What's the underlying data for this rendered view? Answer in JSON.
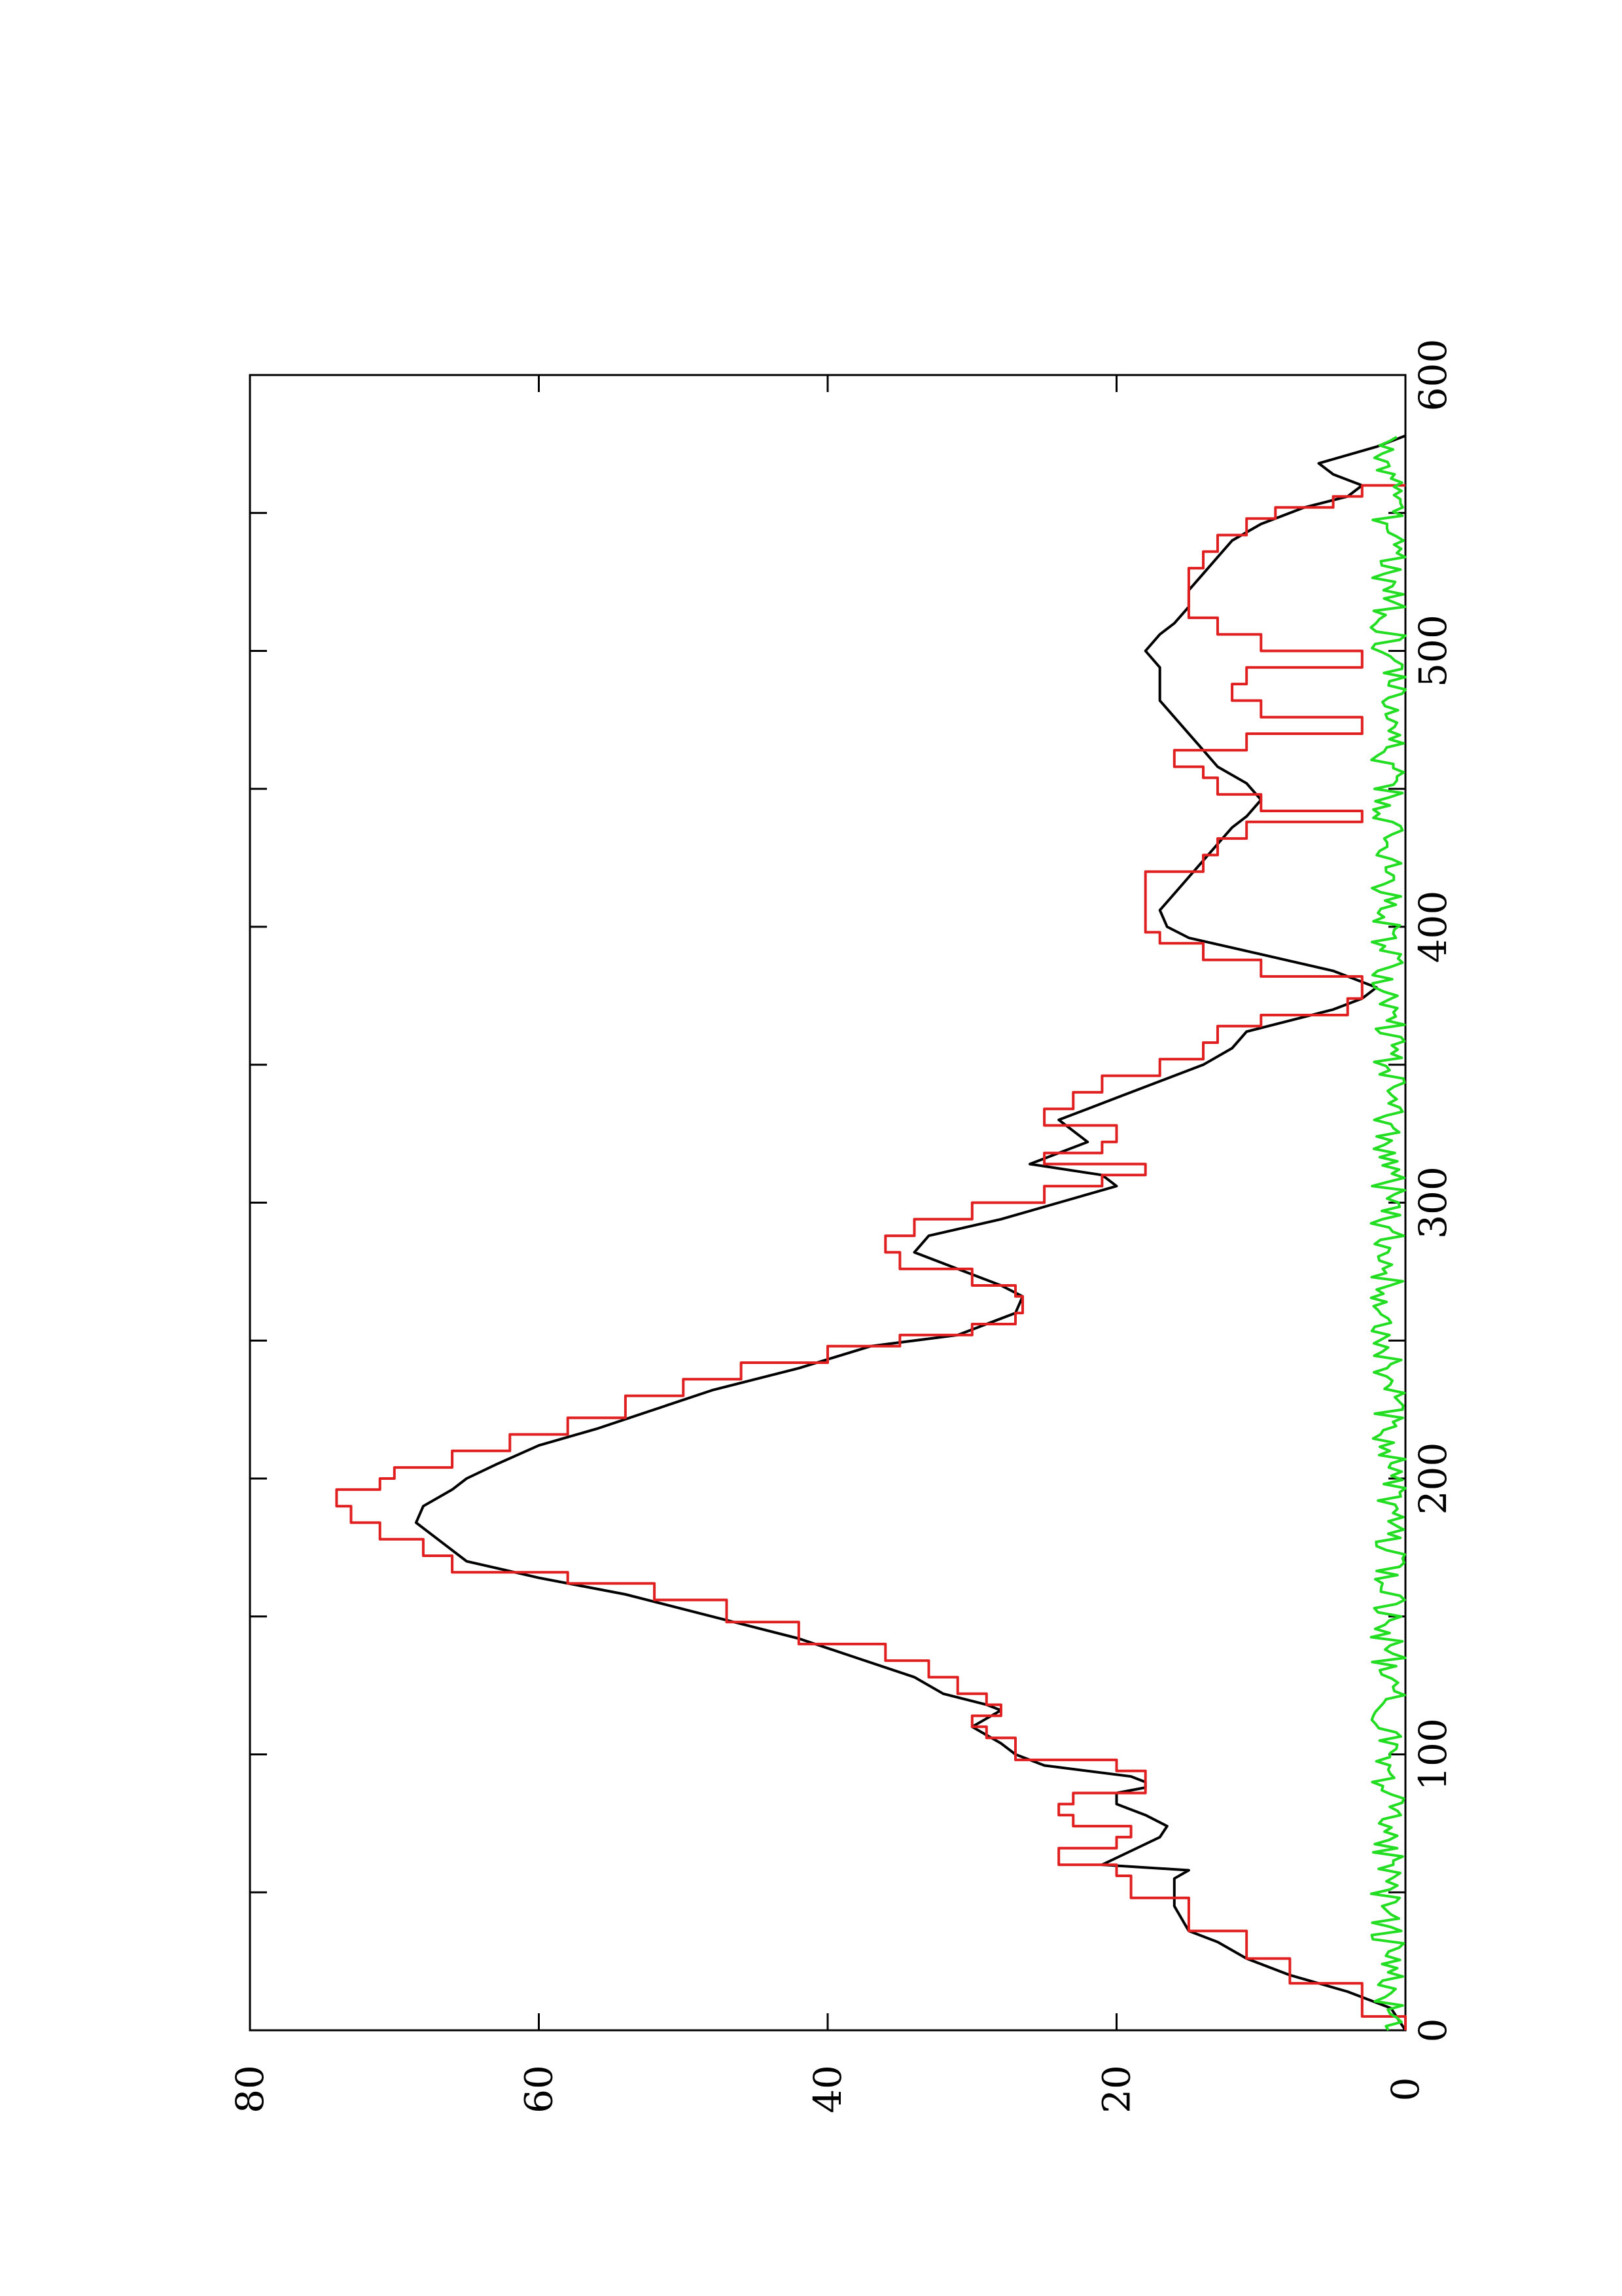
{
  "chart_data": {
    "type": "line",
    "title": "",
    "xlabel": "",
    "ylabel": "",
    "orientation": "rotated-90-ccw",
    "xlim": [
      0,
      600
    ],
    "ylim": [
      0,
      80
    ],
    "x_ticks": [
      "0",
      "100",
      "200",
      "300",
      "400",
      "500",
      "600"
    ],
    "y_ticks": [
      "0",
      "20",
      "40",
      "60",
      "80"
    ],
    "grid": false,
    "legend": "none",
    "series": [
      {
        "color": "#000000",
        "style": "smooth",
        "points": [
          [
            0,
            0
          ],
          [
            8,
            1
          ],
          [
            14,
            4
          ],
          [
            20,
            8
          ],
          [
            26,
            11
          ],
          [
            32,
            13
          ],
          [
            36,
            15
          ],
          [
            45,
            16
          ],
          [
            50,
            16
          ],
          [
            55,
            16
          ],
          [
            58,
            15
          ],
          [
            60,
            21
          ],
          [
            65,
            19
          ],
          [
            70,
            17
          ],
          [
            74,
            16.5
          ],
          [
            78,
            18
          ],
          [
            82,
            20
          ],
          [
            86,
            20
          ],
          [
            88,
            18
          ],
          [
            90,
            18
          ],
          [
            92,
            19
          ],
          [
            96,
            25
          ],
          [
            100,
            27
          ],
          [
            104,
            28
          ],
          [
            107,
            29
          ],
          [
            110,
            30
          ],
          [
            113,
            29
          ],
          [
            116,
            28
          ],
          [
            118,
            29
          ],
          [
            122,
            32
          ],
          [
            128,
            34
          ],
          [
            135,
            38
          ],
          [
            142,
            42
          ],
          [
            150,
            48
          ],
          [
            158,
            54
          ],
          [
            164,
            60
          ],
          [
            170,
            65
          ],
          [
            178,
            67
          ],
          [
            184,
            68.5
          ],
          [
            190,
            68
          ],
          [
            196,
            66
          ],
          [
            200,
            65
          ],
          [
            205,
            63
          ],
          [
            212,
            60
          ],
          [
            218,
            56
          ],
          [
            225,
            52
          ],
          [
            232,
            48
          ],
          [
            240,
            42
          ],
          [
            248,
            37
          ],
          [
            252,
            31
          ],
          [
            256,
            29
          ],
          [
            260,
            27
          ],
          [
            266,
            26.5
          ],
          [
            270,
            28
          ],
          [
            276,
            31
          ],
          [
            282,
            34
          ],
          [
            288,
            33
          ],
          [
            294,
            28
          ],
          [
            300,
            24
          ],
          [
            306,
            20
          ],
          [
            310,
            21
          ],
          [
            314,
            26
          ],
          [
            318,
            24
          ],
          [
            322,
            22
          ],
          [
            326,
            23
          ],
          [
            330,
            24
          ],
          [
            334,
            22
          ],
          [
            338,
            20
          ],
          [
            344,
            17
          ],
          [
            350,
            14
          ],
          [
            356,
            12
          ],
          [
            362,
            11
          ],
          [
            366,
            8
          ],
          [
            370,
            5
          ],
          [
            374,
            3
          ],
          [
            378,
            2
          ],
          [
            384,
            5
          ],
          [
            390,
            10
          ],
          [
            396,
            15
          ],
          [
            400,
            16.5
          ],
          [
            406,
            17
          ],
          [
            412,
            16
          ],
          [
            418,
            15
          ],
          [
            424,
            14
          ],
          [
            430,
            13
          ],
          [
            436,
            12
          ],
          [
            440,
            11
          ],
          [
            446,
            10
          ],
          [
            452,
            11
          ],
          [
            458,
            13
          ],
          [
            464,
            14
          ],
          [
            470,
            15
          ],
          [
            476,
            16
          ],
          [
            482,
            17
          ],
          [
            488,
            17
          ],
          [
            494,
            17
          ],
          [
            500,
            18
          ],
          [
            506,
            17
          ],
          [
            510,
            16
          ],
          [
            516,
            15
          ],
          [
            522,
            15
          ],
          [
            528,
            14
          ],
          [
            534,
            13
          ],
          [
            540,
            12
          ],
          [
            546,
            10
          ],
          [
            552,
            7
          ],
          [
            556,
            4
          ],
          [
            560,
            3
          ],
          [
            564,
            5
          ],
          [
            568,
            6
          ],
          [
            574,
            2
          ],
          [
            578,
            0
          ]
        ]
      },
      {
        "color": "#e02020",
        "style": "step",
        "points": [
          [
            0,
            0
          ],
          [
            5,
            3
          ],
          [
            12,
            3
          ],
          [
            17,
            8
          ],
          [
            22,
            8
          ],
          [
            26,
            11
          ],
          [
            32,
            11
          ],
          [
            36,
            15
          ],
          [
            44,
            15
          ],
          [
            48,
            19
          ],
          [
            52,
            19
          ],
          [
            56,
            20
          ],
          [
            60,
            24
          ],
          [
            66,
            20
          ],
          [
            70,
            19
          ],
          [
            74,
            23
          ],
          [
            78,
            24
          ],
          [
            82,
            23
          ],
          [
            86,
            18
          ],
          [
            90,
            18
          ],
          [
            94,
            20
          ],
          [
            98,
            27
          ],
          [
            102,
            27
          ],
          [
            106,
            29
          ],
          [
            110,
            30
          ],
          [
            114,
            28
          ],
          [
            118,
            29
          ],
          [
            122,
            31
          ],
          [
            128,
            33
          ],
          [
            134,
            36
          ],
          [
            140,
            42
          ],
          [
            148,
            47
          ],
          [
            156,
            52
          ],
          [
            162,
            58
          ],
          [
            166,
            66
          ],
          [
            172,
            68
          ],
          [
            178,
            71
          ],
          [
            184,
            73
          ],
          [
            190,
            74
          ],
          [
            196,
            71
          ],
          [
            200,
            70
          ],
          [
            204,
            66
          ],
          [
            210,
            62
          ],
          [
            216,
            58
          ],
          [
            222,
            54
          ],
          [
            230,
            50
          ],
          [
            236,
            46
          ],
          [
            242,
            40
          ],
          [
            248,
            35
          ],
          [
            252,
            30
          ],
          [
            256,
            27
          ],
          [
            260,
            26.5
          ],
          [
            266,
            27
          ],
          [
            270,
            30
          ],
          [
            276,
            35
          ],
          [
            282,
            36
          ],
          [
            288,
            34
          ],
          [
            294,
            30
          ],
          [
            300,
            25
          ],
          [
            306,
            21
          ],
          [
            310,
            18
          ],
          [
            314,
            25
          ],
          [
            318,
            21
          ],
          [
            322,
            20
          ],
          [
            328,
            25
          ],
          [
            334,
            23
          ],
          [
            340,
            21
          ],
          [
            346,
            17
          ],
          [
            352,
            14
          ],
          [
            358,
            13
          ],
          [
            364,
            10
          ],
          [
            368,
            4
          ],
          [
            374,
            3
          ],
          [
            378,
            3
          ],
          [
            382,
            10
          ],
          [
            388,
            14
          ],
          [
            394,
            17
          ],
          [
            398,
            18
          ],
          [
            404,
            18
          ],
          [
            410,
            18
          ],
          [
            416,
            18
          ],
          [
            420,
            14
          ],
          [
            426,
            13
          ],
          [
            432,
            11
          ],
          [
            438,
            3
          ],
          [
            442,
            10
          ],
          [
            448,
            13
          ],
          [
            454,
            14
          ],
          [
            458,
            16
          ],
          [
            464,
            11
          ],
          [
            470,
            3
          ],
          [
            476,
            10
          ],
          [
            482,
            12
          ],
          [
            488,
            11
          ],
          [
            494,
            3
          ],
          [
            500,
            10
          ],
          [
            506,
            13
          ],
          [
            512,
            15
          ],
          [
            518,
            15
          ],
          [
            524,
            15
          ],
          [
            530,
            14
          ],
          [
            536,
            13
          ],
          [
            542,
            11
          ],
          [
            548,
            9
          ],
          [
            552,
            5
          ],
          [
            556,
            3
          ],
          [
            560,
            0
          ]
        ]
      },
      {
        "color": "#22dd22",
        "style": "noise",
        "amplitude": 1.2,
        "x_range": [
          0,
          578
        ]
      }
    ]
  }
}
